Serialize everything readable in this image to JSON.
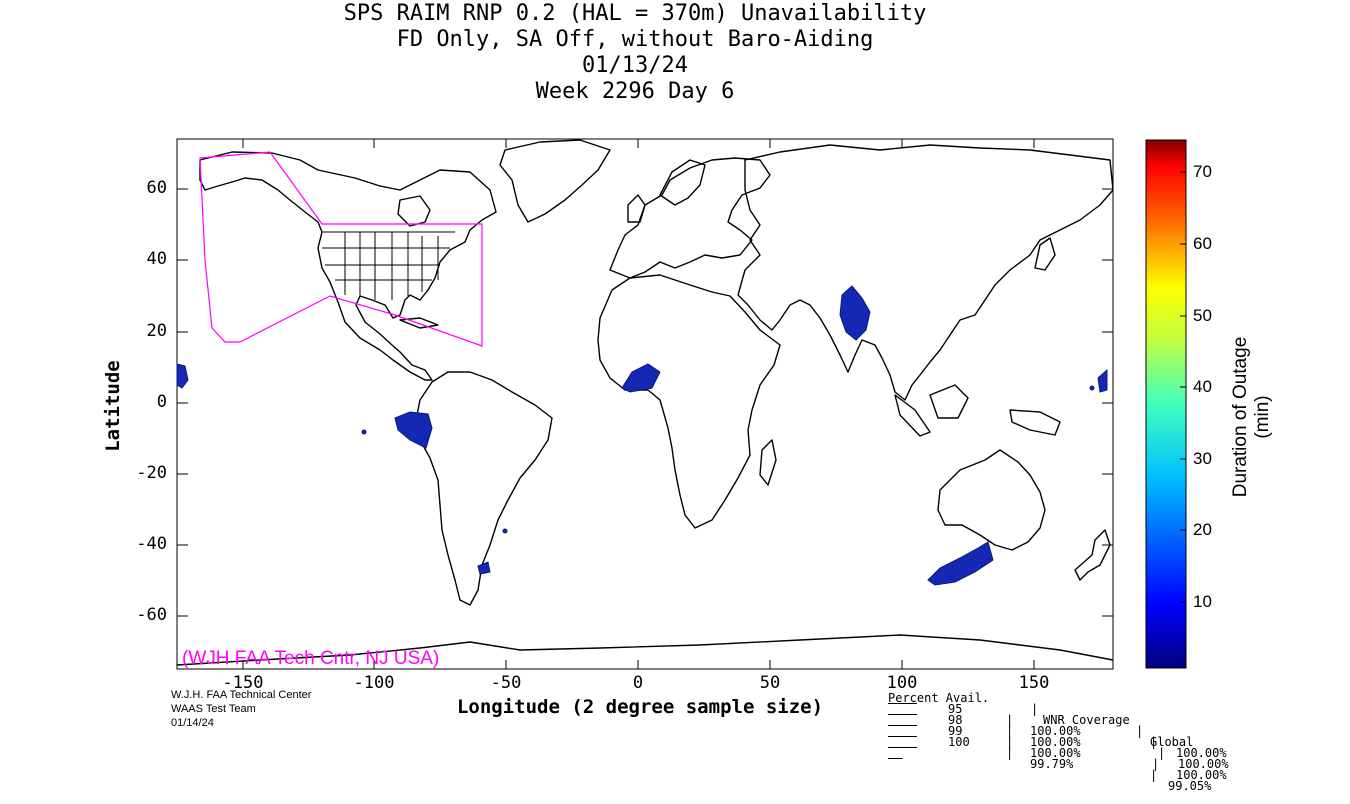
{
  "title": {
    "line1": "SPS RAIM RNP 0.2 (HAL = 370m) Unavailability",
    "line2": "FD Only, SA Off, without Baro-Aiding",
    "line3": "01/13/24",
    "line4": "Week 2296 Day 6"
  },
  "axes": {
    "xlabel": "Longitude (2 degree sample size)",
    "ylabel": "Latitude",
    "xticks": [
      "-150",
      "-100",
      "-50",
      "0",
      "50",
      "100",
      "150"
    ],
    "yticks": [
      "60",
      "40",
      "20",
      "0",
      "-20",
      "-40",
      "-60"
    ]
  },
  "watermark": "(WJH FAA Tech Cntr, NJ USA)",
  "credits": {
    "line1": "W.J.H. FAA Technical Center",
    "line2": "WAAS Test Team",
    "line3": "01/14/24"
  },
  "colorbar": {
    "title": "Duration of Outage (min)",
    "ticks": [
      "70",
      "60",
      "50",
      "40",
      "30",
      "20",
      "10"
    ],
    "range": [
      0,
      75
    ]
  },
  "stats": {
    "header": {
      "col1": "Percent Avail.",
      "col2": "WNR Coverage",
      "col3": "Global"
    },
    "rows": [
      {
        "pct": "95",
        "wnr": "100.00%",
        "global": "100.00%"
      },
      {
        "pct": "98",
        "wnr": "100.00%",
        "global": "100.00%"
      },
      {
        "pct": "99",
        "wnr": "100.00%",
        "global": "100.00%"
      },
      {
        "pct": "100",
        "wnr": "99.79%",
        "global": "99.05%"
      }
    ]
  },
  "colors": {
    "outage": "#1428b4",
    "region_boundary": "#ff00ff",
    "watermark": "#ff00ff"
  }
}
